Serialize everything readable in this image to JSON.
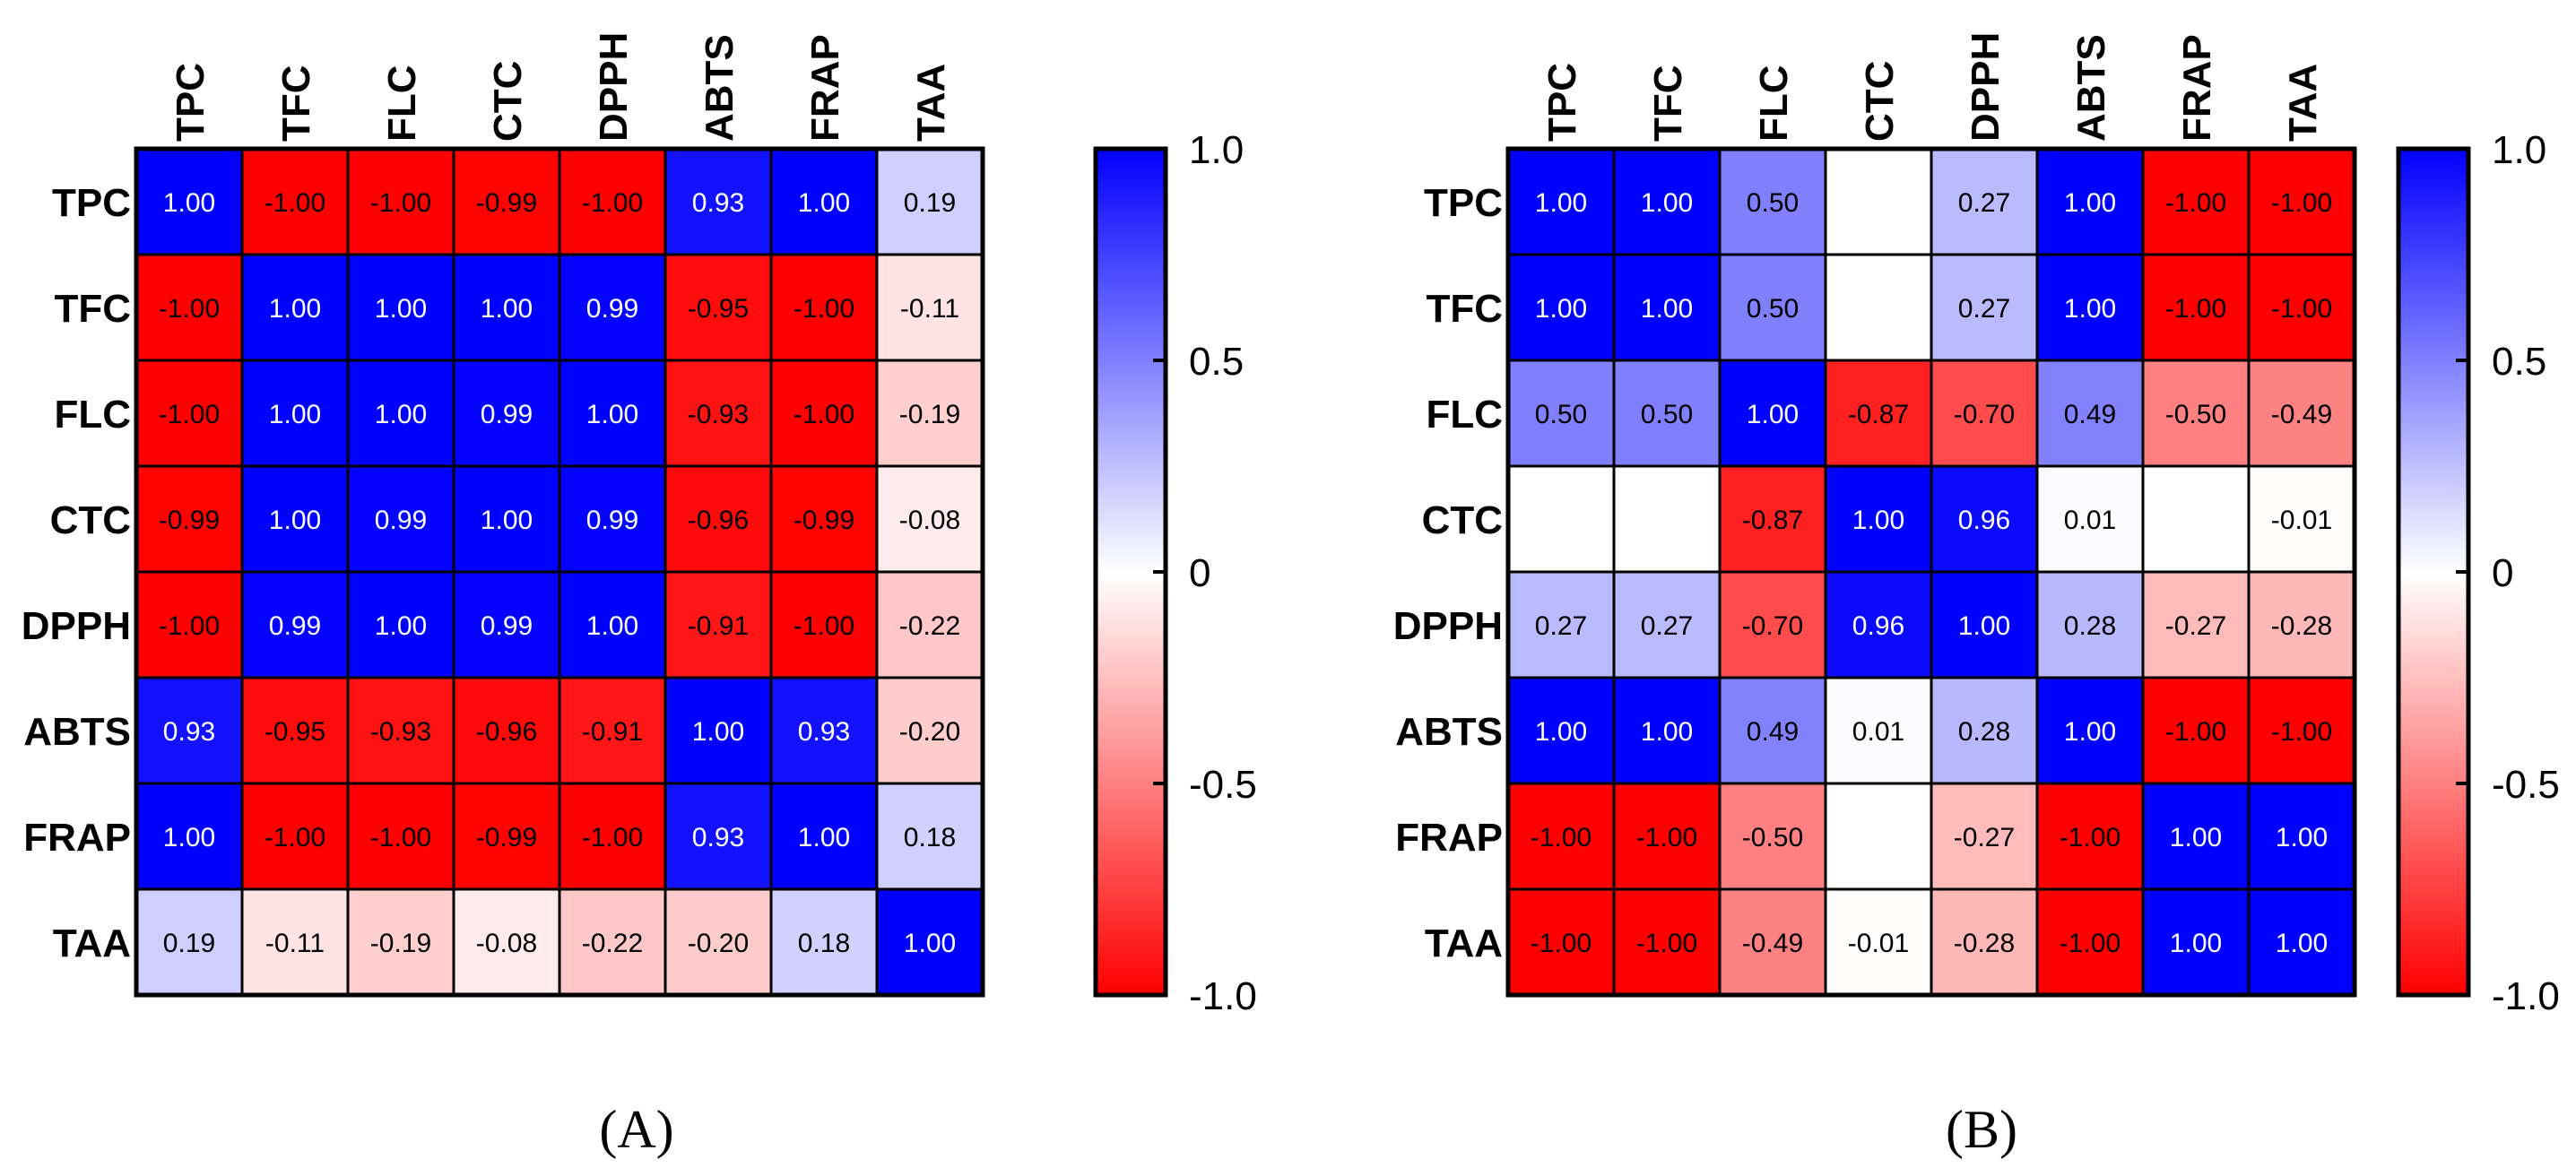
{
  "chart_data": [
    {
      "type": "heatmap",
      "panel_label": "(A)",
      "row_labels": [
        "TPC",
        "TFC",
        "FLC",
        "CTC",
        "DPPH",
        "ABTS",
        "FRAP",
        "TAA"
      ],
      "col_labels": [
        "TPC",
        "TFC",
        "FLC",
        "CTC",
        "DPPH",
        "ABTS",
        "FRAP",
        "TAA"
      ],
      "values": [
        [
          "1.00",
          "-1.00",
          "-1.00",
          "-0.99",
          "-1.00",
          "0.93",
          "1.00",
          "0.19"
        ],
        [
          "-1.00",
          "1.00",
          "1.00",
          "1.00",
          "0.99",
          "-0.95",
          "-1.00",
          "-0.11"
        ],
        [
          "-1.00",
          "1.00",
          "1.00",
          "0.99",
          "1.00",
          "-0.93",
          "-1.00",
          "-0.19"
        ],
        [
          "-0.99",
          "1.00",
          "0.99",
          "1.00",
          "0.99",
          "-0.96",
          "-0.99",
          "-0.08"
        ],
        [
          "-1.00",
          "0.99",
          "1.00",
          "0.99",
          "1.00",
          "-0.91",
          "-1.00",
          "-0.22"
        ],
        [
          "0.93",
          "-0.95",
          "-0.93",
          "-0.96",
          "-0.91",
          "1.00",
          "0.93",
          "-0.20"
        ],
        [
          "1.00",
          "-1.00",
          "-1.00",
          "-0.99",
          "-1.00",
          "0.93",
          "1.00",
          "0.18"
        ],
        [
          "0.19",
          "-0.11",
          "-0.19",
          "-0.08",
          "-0.22",
          "-0.20",
          "0.18",
          "1.00"
        ]
      ],
      "colorbar": {
        "range": [
          -1.0,
          1.0
        ],
        "ticks": [
          1.0,
          0.5,
          0,
          -0.5,
          -1.0
        ],
        "tick_labels": [
          "1.0",
          "0.5",
          "0",
          "-0.5",
          "-1.0"
        ],
        "positive_color": "#0000ff",
        "zero_color": "#ffffff",
        "negative_color": "#ff0000"
      }
    },
    {
      "type": "heatmap",
      "panel_label": "(B)",
      "row_labels": [
        "TPC",
        "TFC",
        "FLC",
        "CTC",
        "DPPH",
        "ABTS",
        "FRAP",
        "TAA"
      ],
      "col_labels": [
        "TPC",
        "TFC",
        "FLC",
        "CTC",
        "DPPH",
        "ABTS",
        "FRAP",
        "TAA"
      ],
      "values": [
        [
          "1.00",
          "1.00",
          "0.50",
          "",
          "0.27",
          "1.00",
          "-1.00",
          "-1.00"
        ],
        [
          "1.00",
          "1.00",
          "0.50",
          "",
          "0.27",
          "1.00",
          "-1.00",
          "-1.00"
        ],
        [
          "0.50",
          "0.50",
          "1.00",
          "-0.87",
          "-0.70",
          "0.49",
          "-0.50",
          "-0.49"
        ],
        [
          "",
          "",
          "-0.87",
          "1.00",
          "0.96",
          "0.01",
          "",
          "-0.01"
        ],
        [
          "0.27",
          "0.27",
          "-0.70",
          "0.96",
          "1.00",
          "0.28",
          "-0.27",
          "-0.28"
        ],
        [
          "1.00",
          "1.00",
          "0.49",
          "0.01",
          "0.28",
          "1.00",
          "-1.00",
          "-1.00"
        ],
        [
          "-1.00",
          "-1.00",
          "-0.50",
          "",
          "-0.27",
          "-1.00",
          "1.00",
          "1.00"
        ],
        [
          "-1.00",
          "-1.00",
          "-0.49",
          "-0.01",
          "-0.28",
          "-1.00",
          "1.00",
          "1.00"
        ]
      ],
      "colorbar": {
        "range": [
          -1.0,
          1.0
        ],
        "ticks": [
          1.0,
          0.5,
          0,
          -0.5,
          -1.0
        ],
        "tick_labels": [
          "1.0",
          "0.5",
          "0",
          "-0.5",
          "-1.0"
        ],
        "positive_color": "#0000ff",
        "zero_color": "#ffffff",
        "negative_color": "#ff0000"
      }
    }
  ]
}
